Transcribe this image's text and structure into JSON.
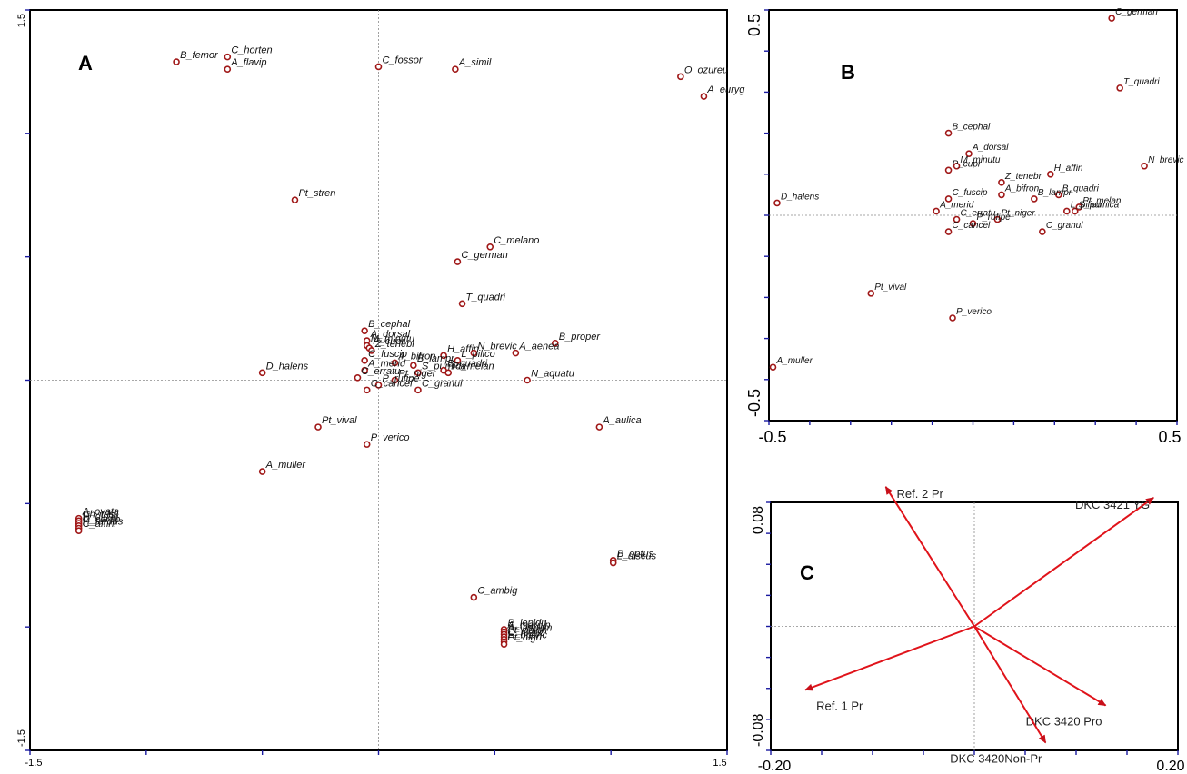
{
  "chart_data": [
    {
      "panel": "A",
      "type": "scatter",
      "xlim": [
        -1.5,
        1.5
      ],
      "ylim": [
        -1.5,
        1.5
      ],
      "x_tick_labels": [
        "-1.5",
        "1.5"
      ],
      "y_tick_labels": [
        "-1.5",
        "1.5"
      ],
      "points": [
        {
          "label": "C_horten",
          "x": -0.65,
          "y": 1.31
        },
        {
          "label": "B_femor",
          "x": -0.87,
          "y": 1.29
        },
        {
          "label": "A_flavip",
          "x": -0.65,
          "y": 1.26
        },
        {
          "label": "C_fossor",
          "x": 0.0,
          "y": 1.27
        },
        {
          "label": "A_simil",
          "x": 0.33,
          "y": 1.26
        },
        {
          "label": "O_ozureu",
          "x": 1.3,
          "y": 1.23
        },
        {
          "label": "A_euryg",
          "x": 1.4,
          "y": 1.15
        },
        {
          "label": "Pt_stren",
          "x": -0.36,
          "y": 0.73
        },
        {
          "label": "C_melano",
          "x": 0.48,
          "y": 0.54
        },
        {
          "label": "C_german",
          "x": 0.34,
          "y": 0.48
        },
        {
          "label": "T_quadri",
          "x": 0.36,
          "y": 0.31
        },
        {
          "label": "B_cephal",
          "x": -0.06,
          "y": 0.2
        },
        {
          "label": "A_dorsal",
          "x": -0.05,
          "y": 0.16
        },
        {
          "label": "M_minutu",
          "x": -0.05,
          "y": 0.14
        },
        {
          "label": "P_cupr",
          "x": -0.04,
          "y": 0.13
        },
        {
          "label": "Z_tenebr",
          "x": -0.03,
          "y": 0.12
        },
        {
          "label": "C_fuscip",
          "x": -0.06,
          "y": 0.08
        },
        {
          "label": "H_affin",
          "x": 0.28,
          "y": 0.1
        },
        {
          "label": "N_brevic",
          "x": 0.41,
          "y": 0.11
        },
        {
          "label": "B_proper",
          "x": 0.76,
          "y": 0.15
        },
        {
          "label": "A_aenea",
          "x": 0.59,
          "y": 0.11
        },
        {
          "label": "A_bifron",
          "x": 0.07,
          "y": 0.07
        },
        {
          "label": "L_pilico",
          "x": 0.34,
          "y": 0.08
        },
        {
          "label": "B_lampr",
          "x": 0.15,
          "y": 0.06
        },
        {
          "label": "A_merid",
          "x": -0.06,
          "y": 0.04
        },
        {
          "label": "S_pumica",
          "x": 0.17,
          "y": 0.03
        },
        {
          "label": "B_quadri",
          "x": 0.28,
          "y": 0.04
        },
        {
          "label": "Pt_melan",
          "x": 0.3,
          "y": 0.03
        },
        {
          "label": "Pt_niger",
          "x": 0.07,
          "y": 0.0
        },
        {
          "label": "N_aquatu",
          "x": 0.64,
          "y": 0.0
        },
        {
          "label": "D_halens",
          "x": -0.5,
          "y": 0.03
        },
        {
          "label": "C_erratu",
          "x": -0.09,
          "y": 0.01
        },
        {
          "label": "P_rufipe",
          "x": 0.0,
          "y": -0.02
        },
        {
          "label": "C_cancel",
          "x": -0.05,
          "y": -0.04
        },
        {
          "label": "C_granul",
          "x": 0.17,
          "y": -0.04
        },
        {
          "label": "Pt_vival",
          "x": -0.26,
          "y": -0.19
        },
        {
          "label": "P_verico",
          "x": -0.05,
          "y": -0.26
        },
        {
          "label": "A_aulica",
          "x": 0.95,
          "y": -0.19
        },
        {
          "label": "A_muller",
          "x": -0.5,
          "y": -0.37
        },
        {
          "label": "A_ovata",
          "x": -1.29,
          "y": -0.56
        },
        {
          "label": "Ch_trisi",
          "x": -1.29,
          "y": -0.57
        },
        {
          "label": "H_distin",
          "x": -1.29,
          "y": -0.58
        },
        {
          "label": "C_carab",
          "x": -1.29,
          "y": -0.59
        },
        {
          "label": "H_tardus",
          "x": -1.29,
          "y": -0.6
        },
        {
          "label": "C_affini",
          "x": -1.29,
          "y": -0.61
        },
        {
          "label": "B_optus",
          "x": 1.01,
          "y": -0.73
        },
        {
          "label": "L_discus",
          "x": 1.01,
          "y": -0.74
        },
        {
          "label": "C_ambig",
          "x": 0.41,
          "y": -0.88
        },
        {
          "label": "P_lepidu",
          "x": 0.54,
          "y": -1.01
        },
        {
          "label": "A_margin",
          "x": 0.54,
          "y": -1.02
        },
        {
          "label": "A_viduum",
          "x": 0.54,
          "y": -1.03
        },
        {
          "label": "Pt_oblpn",
          "x": 0.54,
          "y": -1.04
        },
        {
          "label": "C_nigric",
          "x": 0.54,
          "y": -1.05
        },
        {
          "label": "H_brevic",
          "x": 0.54,
          "y": -1.06
        },
        {
          "label": "Pt_nigri",
          "x": 0.54,
          "y": -1.07
        }
      ]
    },
    {
      "panel": "B",
      "type": "scatter",
      "xlim": [
        -0.5,
        0.5
      ],
      "ylim": [
        -0.5,
        0.5
      ],
      "x_tick_labels": [
        "-0.5",
        "0.5"
      ],
      "y_tick_labels": [
        "-0.5",
        "0.5"
      ],
      "points": [
        {
          "label": "C_german",
          "x": 0.34,
          "y": 0.48
        },
        {
          "label": "T_quadri",
          "x": 0.36,
          "y": 0.31
        },
        {
          "label": "B_cephal",
          "x": -0.06,
          "y": 0.2
        },
        {
          "label": "A_dorsal",
          "x": -0.01,
          "y": 0.15
        },
        {
          "label": "M_minutu",
          "x": -0.04,
          "y": 0.12
        },
        {
          "label": "P_cupr",
          "x": -0.06,
          "y": 0.11
        },
        {
          "label": "H_affin",
          "x": 0.19,
          "y": 0.1
        },
        {
          "label": "N_brevic",
          "x": 0.42,
          "y": 0.12
        },
        {
          "label": "Z_tenebr",
          "x": 0.07,
          "y": 0.08
        },
        {
          "label": "C_fuscip",
          "x": -0.06,
          "y": 0.04
        },
        {
          "label": "B_quadri",
          "x": 0.21,
          "y": 0.05
        },
        {
          "label": "A_bifron",
          "x": 0.07,
          "y": 0.05
        },
        {
          "label": "B_lampr",
          "x": 0.15,
          "y": 0.04
        },
        {
          "label": "D_halens",
          "x": -0.48,
          "y": 0.03
        },
        {
          "label": "A_merid",
          "x": -0.09,
          "y": 0.01
        },
        {
          "label": "Pt_melan",
          "x": 0.26,
          "y": 0.02
        },
        {
          "label": "S_pumica",
          "x": 0.25,
          "y": 0.01
        },
        {
          "label": "L_pilico",
          "x": 0.23,
          "y": 0.01
        },
        {
          "label": "C_erratu",
          "x": -0.04,
          "y": -0.01
        },
        {
          "label": "Pt_niger",
          "x": 0.06,
          "y": -0.01
        },
        {
          "label": "P_rufipe",
          "x": 0.0,
          "y": -0.02
        },
        {
          "label": "C_cancel",
          "x": -0.06,
          "y": -0.04
        },
        {
          "label": "C_granul",
          "x": 0.17,
          "y": -0.04
        },
        {
          "label": "Pt_vival",
          "x": -0.25,
          "y": -0.19
        },
        {
          "label": "P_verico",
          "x": -0.05,
          "y": -0.25
        },
        {
          "label": "A_muller",
          "x": -0.49,
          "y": -0.37
        }
      ]
    },
    {
      "panel": "C",
      "type": "biplot",
      "xlim": [
        -0.2,
        0.2
      ],
      "ylim": [
        -0.08,
        0.08
      ],
      "x_tick_labels": [
        "-0.20",
        "0.20"
      ],
      "y_tick_labels": [
        "-0.08",
        "0.08"
      ],
      "arrows": [
        {
          "label": "Ref. 2 Pr",
          "x": -0.087,
          "y": 0.09
        },
        {
          "label": "DKC 3421 YG",
          "x": 0.176,
          "y": 0.083
        },
        {
          "label": "DKC 3420 Pro",
          "x": 0.129,
          "y": -0.051
        },
        {
          "label": "Ref. 1 Pr",
          "x": -0.166,
          "y": -0.041
        },
        {
          "label": "DKC 3420Non-Pr",
          "x": 0.07,
          "y": -0.075
        }
      ]
    }
  ]
}
